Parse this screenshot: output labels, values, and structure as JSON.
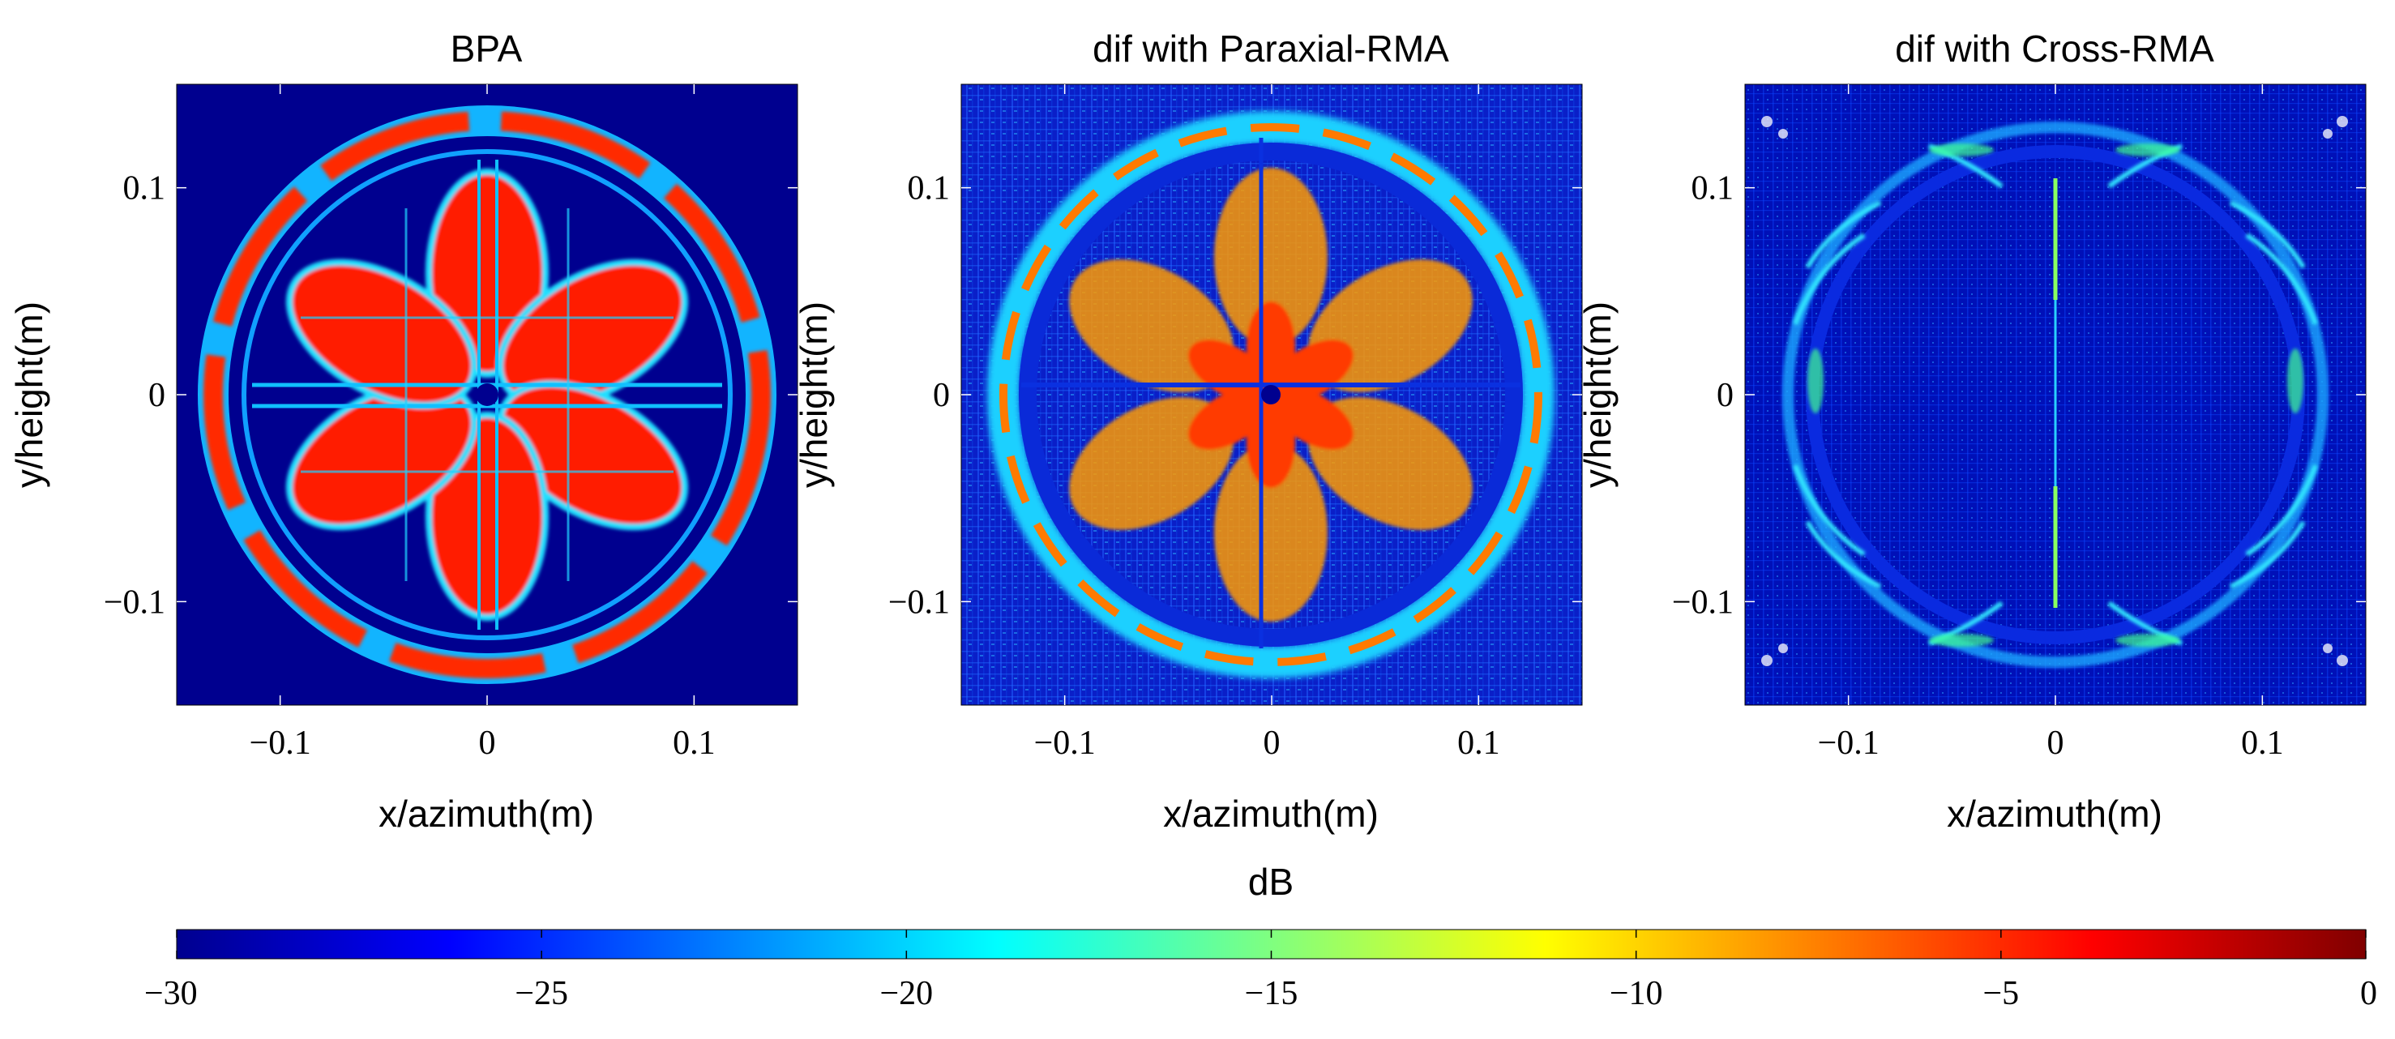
{
  "chart_data": {
    "type": "heatmap",
    "colormap": "jet",
    "panels": [
      {
        "title": "BPA",
        "xlabel": "x/azimuth(m)",
        "ylabel": "y/height(m)",
        "xlim": [
          -0.15,
          0.15
        ],
        "ylim": [
          -0.15,
          0.15
        ],
        "xticks": [
          -0.1,
          0,
          0.1
        ],
        "xtick_labels": [
          "−0.1",
          "0",
          "0.1"
        ],
        "yticks": [
          0.1,
          0,
          -0.1
        ],
        "ytick_labels": [
          "0.1",
          "0",
          "−0.1"
        ]
      },
      {
        "title": "dif with Paraxial-RMA",
        "xlabel": "x/azimuth(m)",
        "ylabel": "y/height(m)",
        "xlim": [
          -0.15,
          0.15
        ],
        "ylim": [
          -0.15,
          0.15
        ],
        "xticks": [
          -0.1,
          0,
          0.1
        ],
        "xtick_labels": [
          "−0.1",
          "0",
          "0.1"
        ],
        "yticks": [
          0.1,
          0,
          -0.1
        ],
        "ytick_labels": [
          "0.1",
          "0",
          "−0.1"
        ]
      },
      {
        "title": "dif with Cross-RMA",
        "xlabel": "x/azimuth(m)",
        "ylabel": "y/height(m)",
        "xlim": [
          -0.15,
          0.15
        ],
        "ylim": [
          -0.15,
          0.15
        ],
        "xticks": [
          -0.1,
          0,
          0.1
        ],
        "xtick_labels": [
          "−0.1",
          "0",
          "0.1"
        ],
        "yticks": [
          0.1,
          0,
          -0.1
        ],
        "ytick_labels": [
          "0.1",
          "0",
          "−0.1"
        ]
      }
    ],
    "colorbar": {
      "label": "dB",
      "range": [
        -30,
        0
      ],
      "ticks": [
        -30,
        -25,
        -20,
        -15,
        -10,
        -5,
        0
      ],
      "tick_labels": [
        "−30",
        "−25",
        "−20",
        "−15",
        "−10",
        "−5",
        "0"
      ]
    }
  }
}
